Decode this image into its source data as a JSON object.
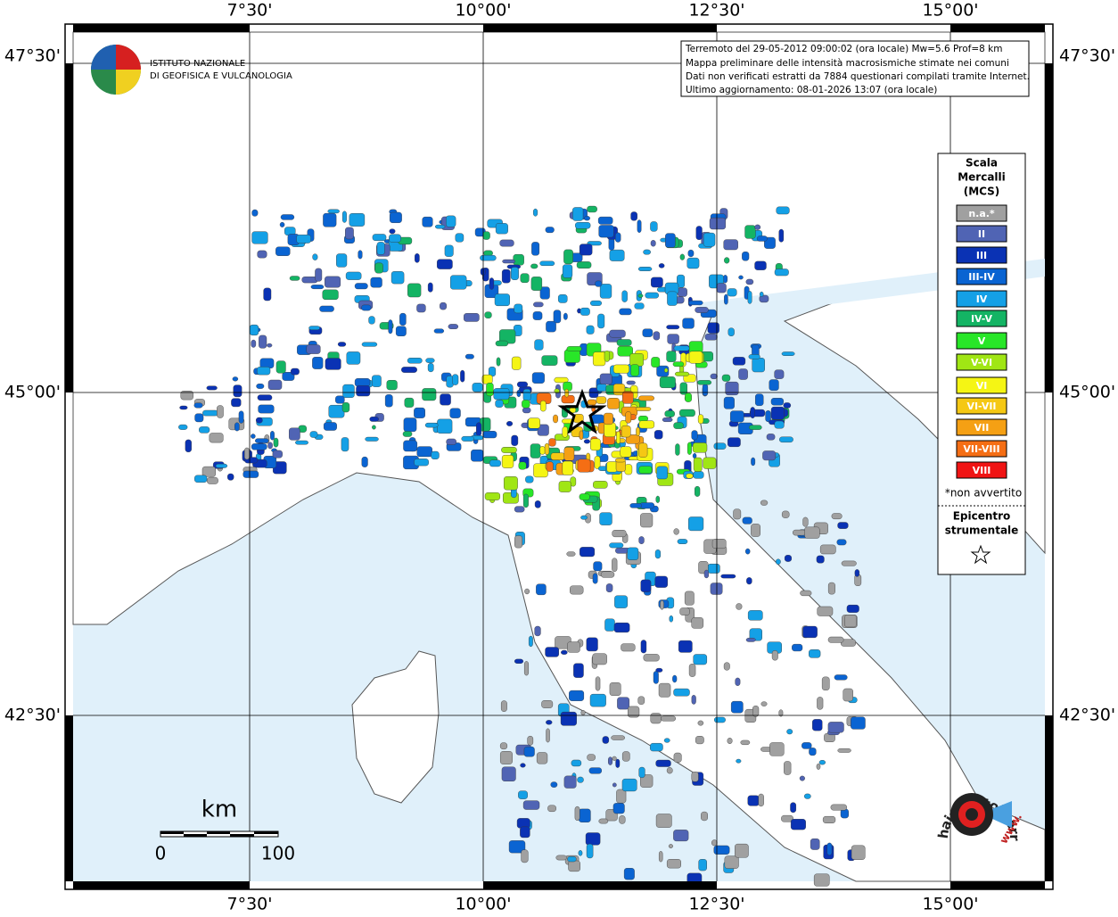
{
  "header": {
    "institute_lines": [
      "ISTITUTO NAZIONALE",
      "DI GEOFISICA E VULCANOLOGIA"
    ]
  },
  "info_box": {
    "lines": [
      "Terremoto del 29-05-2012 09:00:02 (ora locale) Mw=5.6 Prof=8 km",
      "Mappa preliminare delle intensità macrosismiche stimate nei comuni",
      "Dati non verificati estratti da 7884 questionari compilati tramite Internet.",
      "Ultimo aggiornamento: 08-01-2026 13:07 (ora locale)"
    ]
  },
  "axes": {
    "top_labels": [
      "7°30'",
      "10°00'",
      "12°30'",
      "15°00'"
    ],
    "bottom_labels": [
      "7°30'",
      "10°00'",
      "12°30'",
      "15°00'"
    ],
    "left_labels": [
      "47°30'",
      "45°00'",
      "42°30'"
    ],
    "right_labels": [
      "47°30'",
      "45°00'",
      "42°30'"
    ]
  },
  "legend": {
    "title_lines": [
      "Scala",
      "Mercalli",
      "(MCS)"
    ],
    "items": [
      {
        "label": "n.a.*",
        "color": "#a0a0a0"
      },
      {
        "label": "II",
        "color": "#5064b4"
      },
      {
        "label": "III",
        "color": "#0a32b4"
      },
      {
        "label": "III-IV",
        "color": "#0a64d2"
      },
      {
        "label": "IV",
        "color": "#14a0e6"
      },
      {
        "label": "IV-V",
        "color": "#14b464"
      },
      {
        "label": "V",
        "color": "#28e628"
      },
      {
        "label": "V-VI",
        "color": "#a0e614"
      },
      {
        "label": "VI",
        "color": "#f5f514"
      },
      {
        "label": "VI-VII",
        "color": "#f5c814"
      },
      {
        "label": "VII",
        "color": "#f5a014"
      },
      {
        "label": "VII-VIII",
        "color": "#f56e14"
      },
      {
        "label": "VIII",
        "color": "#f01414"
      }
    ],
    "note": "*non avvertito",
    "epicenter_lines": [
      "Epicentro",
      "strumentale"
    ]
  },
  "scale_bar": {
    "unit": "km",
    "labels": [
      "0",
      "100"
    ]
  },
  "watermark": {
    "site": "haisentitoilterremoto.it",
    "prefix": "www."
  }
}
